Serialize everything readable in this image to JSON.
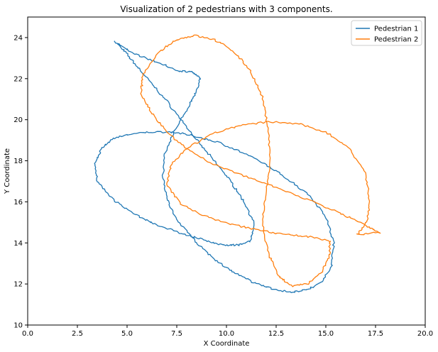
{
  "chart_data": {
    "type": "line",
    "title": "Visualization of 2 pedestrians with 3 components.",
    "xlabel": "X Coordinate",
    "ylabel": "Y Coordinate",
    "xlim": [
      0,
      20
    ],
    "ylim": [
      10,
      25
    ],
    "xticks": [
      "0.0",
      "2.5",
      "5.0",
      "7.5",
      "10.0",
      "12.5",
      "15.0",
      "17.5",
      "20.0"
    ],
    "yticks": [
      "10",
      "12",
      "14",
      "16",
      "18",
      "20",
      "22",
      "24"
    ],
    "grid": false,
    "legend_position": "top-right",
    "series": [
      {
        "name": "Pedestrian 1",
        "color": "#1f77b4",
        "points": [
          [
            4.4,
            23.8
          ],
          [
            4.9,
            23.3
          ],
          [
            5.5,
            22.6
          ],
          [
            6.2,
            21.8
          ],
          [
            7.0,
            20.9
          ],
          [
            7.8,
            19.9
          ],
          [
            8.5,
            19.0
          ],
          [
            9.2,
            18.2
          ],
          [
            9.9,
            17.4
          ],
          [
            10.5,
            16.6
          ],
          [
            11.0,
            15.8
          ],
          [
            11.4,
            14.9
          ],
          [
            11.2,
            14.1
          ],
          [
            10.6,
            13.9
          ],
          [
            9.8,
            13.9
          ],
          [
            9.0,
            14.1
          ],
          [
            8.0,
            14.4
          ],
          [
            7.0,
            14.7
          ],
          [
            6.0,
            15.1
          ],
          [
            5.0,
            15.6
          ],
          [
            4.2,
            16.2
          ],
          [
            3.5,
            17.0
          ],
          [
            3.4,
            17.9
          ],
          [
            3.7,
            18.6
          ],
          [
            4.3,
            19.1
          ],
          [
            5.2,
            19.3
          ],
          [
            6.2,
            19.4
          ],
          [
            7.3,
            19.4
          ],
          [
            8.4,
            19.2
          ],
          [
            9.6,
            18.9
          ],
          [
            10.8,
            18.4
          ],
          [
            12.0,
            17.8
          ],
          [
            13.1,
            17.1
          ],
          [
            14.2,
            16.3
          ],
          [
            15.0,
            15.3
          ],
          [
            15.4,
            14.0
          ],
          [
            15.3,
            12.9
          ],
          [
            14.8,
            12.1
          ],
          [
            14.0,
            11.7
          ],
          [
            13.1,
            11.6
          ],
          [
            12.2,
            11.8
          ],
          [
            11.3,
            12.1
          ],
          [
            10.3,
            12.6
          ],
          [
            9.4,
            13.2
          ],
          [
            8.5,
            14.0
          ],
          [
            7.6,
            15.0
          ],
          [
            7.0,
            16.1
          ],
          [
            6.8,
            17.2
          ],
          [
            6.9,
            18.3
          ],
          [
            7.3,
            19.3
          ],
          [
            7.9,
            20.3
          ],
          [
            8.4,
            21.2
          ],
          [
            8.7,
            22.0
          ],
          [
            8.3,
            22.3
          ],
          [
            7.5,
            22.4
          ],
          [
            6.5,
            22.8
          ],
          [
            5.4,
            23.2
          ],
          [
            4.5,
            23.7
          ]
        ]
      },
      {
        "name": "Pedestrian 2",
        "color": "#ff7f0e",
        "points": [
          [
            5.8,
            22.2
          ],
          [
            6.6,
            23.3
          ],
          [
            7.5,
            23.9
          ],
          [
            8.4,
            24.1
          ],
          [
            9.4,
            23.9
          ],
          [
            10.4,
            23.3
          ],
          [
            11.2,
            22.4
          ],
          [
            11.8,
            21.1
          ],
          [
            12.1,
            19.6
          ],
          [
            12.2,
            18.0
          ],
          [
            12.0,
            16.5
          ],
          [
            11.8,
            15.0
          ],
          [
            12.1,
            13.5
          ],
          [
            12.6,
            12.4
          ],
          [
            13.3,
            11.9
          ],
          [
            14.1,
            12.0
          ],
          [
            14.8,
            12.6
          ],
          [
            15.2,
            13.4
          ],
          [
            15.2,
            14.1
          ],
          [
            14.2,
            14.3
          ],
          [
            13.0,
            14.4
          ],
          [
            11.7,
            14.6
          ],
          [
            10.3,
            14.9
          ],
          [
            8.9,
            15.3
          ],
          [
            7.7,
            15.9
          ],
          [
            7.0,
            16.8
          ],
          [
            7.2,
            17.8
          ],
          [
            8.0,
            18.6
          ],
          [
            9.2,
            19.3
          ],
          [
            10.6,
            19.7
          ],
          [
            12.1,
            19.9
          ],
          [
            13.6,
            19.8
          ],
          [
            15.0,
            19.4
          ],
          [
            16.2,
            18.6
          ],
          [
            17.0,
            17.4
          ],
          [
            17.2,
            16.1
          ],
          [
            17.1,
            15.1
          ],
          [
            16.6,
            14.4
          ],
          [
            17.7,
            14.5
          ],
          [
            16.9,
            14.9
          ],
          [
            15.8,
            15.4
          ],
          [
            14.6,
            15.9
          ],
          [
            13.3,
            16.4
          ],
          [
            11.9,
            16.9
          ],
          [
            10.5,
            17.4
          ],
          [
            9.2,
            17.9
          ],
          [
            8.0,
            18.6
          ],
          [
            7.0,
            19.4
          ],
          [
            6.2,
            20.4
          ],
          [
            5.7,
            21.3
          ],
          [
            5.8,
            22.2
          ]
        ]
      }
    ]
  }
}
